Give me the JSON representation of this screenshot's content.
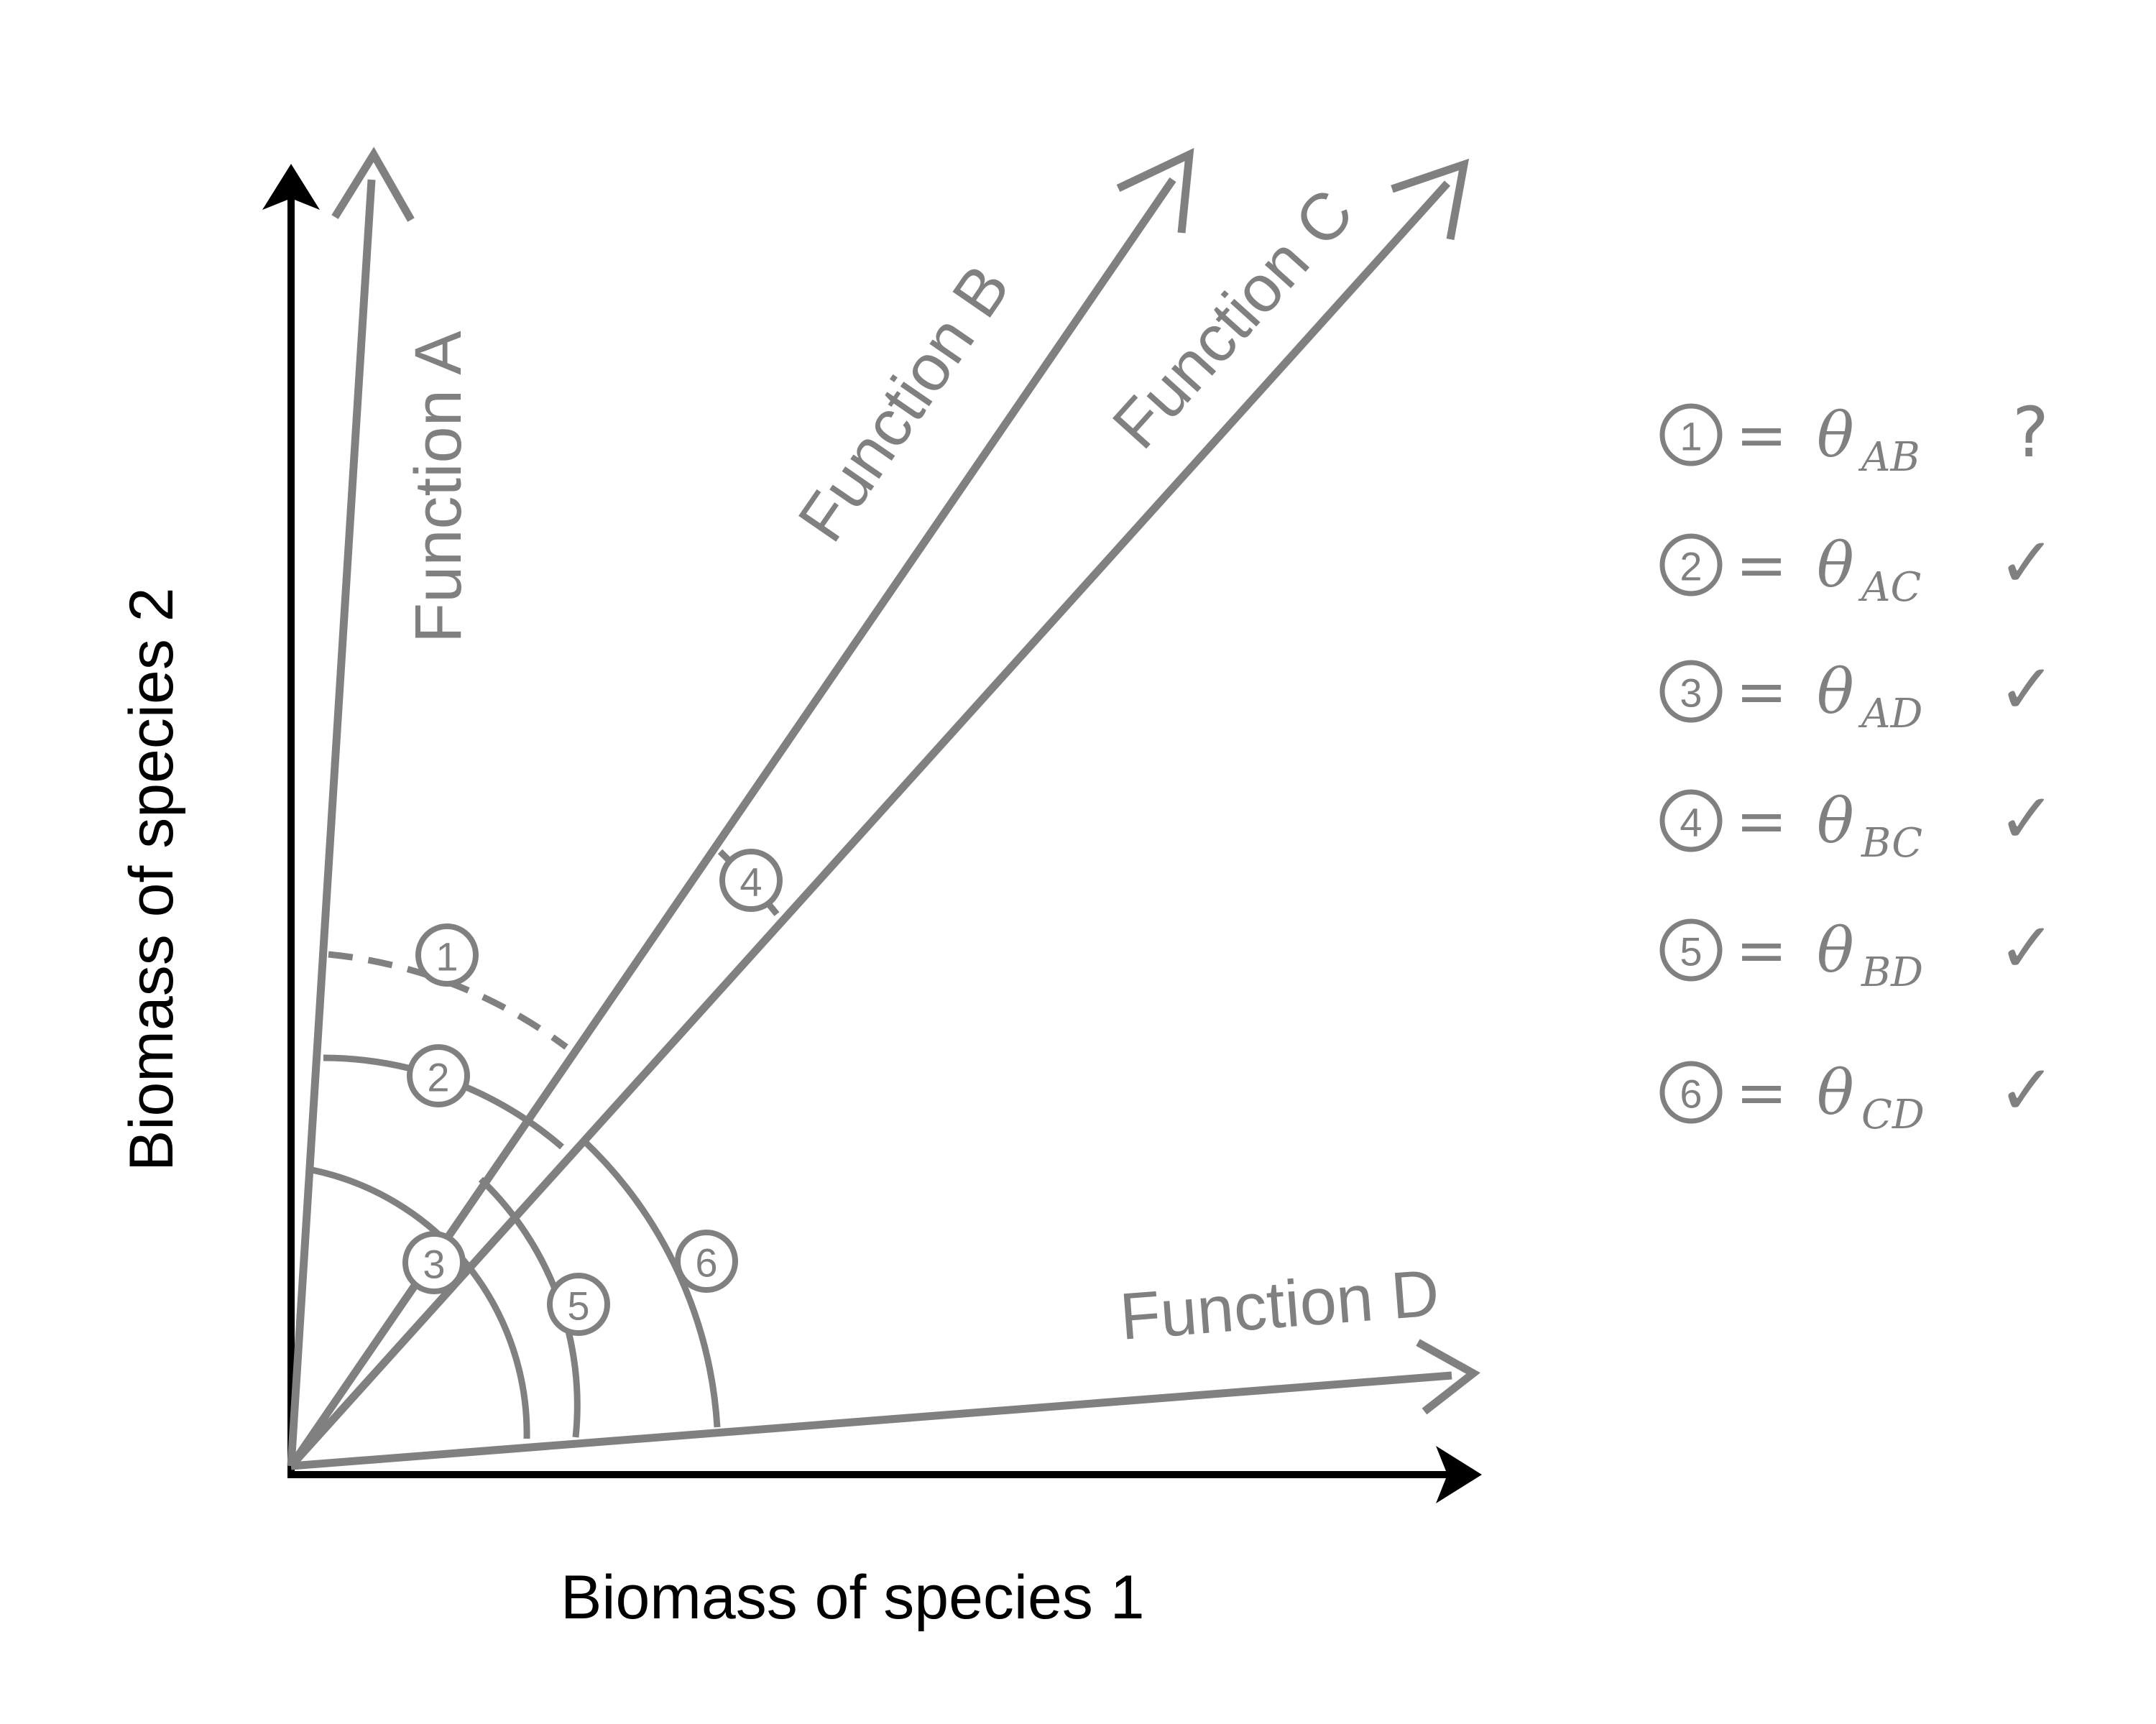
{
  "axes": {
    "x_label": "Biomass of species 1",
    "y_label": "Biomass of species 2"
  },
  "functions": [
    {
      "id": "A",
      "label": "Function A"
    },
    {
      "id": "B",
      "label": "Function B"
    },
    {
      "id": "C",
      "label": "Function C"
    },
    {
      "id": "D",
      "label": "Function D"
    }
  ],
  "angles": [
    {
      "number": "1",
      "between": "AB",
      "style": "dashed"
    },
    {
      "number": "2",
      "between": "AC",
      "style": "solid"
    },
    {
      "number": "3",
      "between": "AD",
      "style": "solid"
    },
    {
      "number": "4",
      "between": "BC",
      "style": "solid"
    },
    {
      "number": "5",
      "between": "BD",
      "style": "solid"
    },
    {
      "number": "6",
      "between": "CD",
      "style": "solid"
    }
  ],
  "legend": [
    {
      "number": "1",
      "equals": "=",
      "symbol": "θ",
      "subscript": "AB",
      "mark": "?"
    },
    {
      "number": "2",
      "equals": "=",
      "symbol": "θ",
      "subscript": "AC",
      "mark": "✓"
    },
    {
      "number": "3",
      "equals": "=",
      "symbol": "θ",
      "subscript": "AD",
      "mark": "✓"
    },
    {
      "number": "4",
      "equals": "=",
      "symbol": "θ",
      "subscript": "BC",
      "mark": "✓"
    },
    {
      "number": "5",
      "equals": "=",
      "symbol": "θ",
      "subscript": "BD",
      "mark": "✓"
    },
    {
      "number": "6",
      "equals": "=",
      "symbol": "θ",
      "subscript": "CD",
      "mark": "✓"
    }
  ],
  "colors": {
    "axes": "#000000",
    "vectors": "#808080",
    "background": "#ffffff"
  }
}
